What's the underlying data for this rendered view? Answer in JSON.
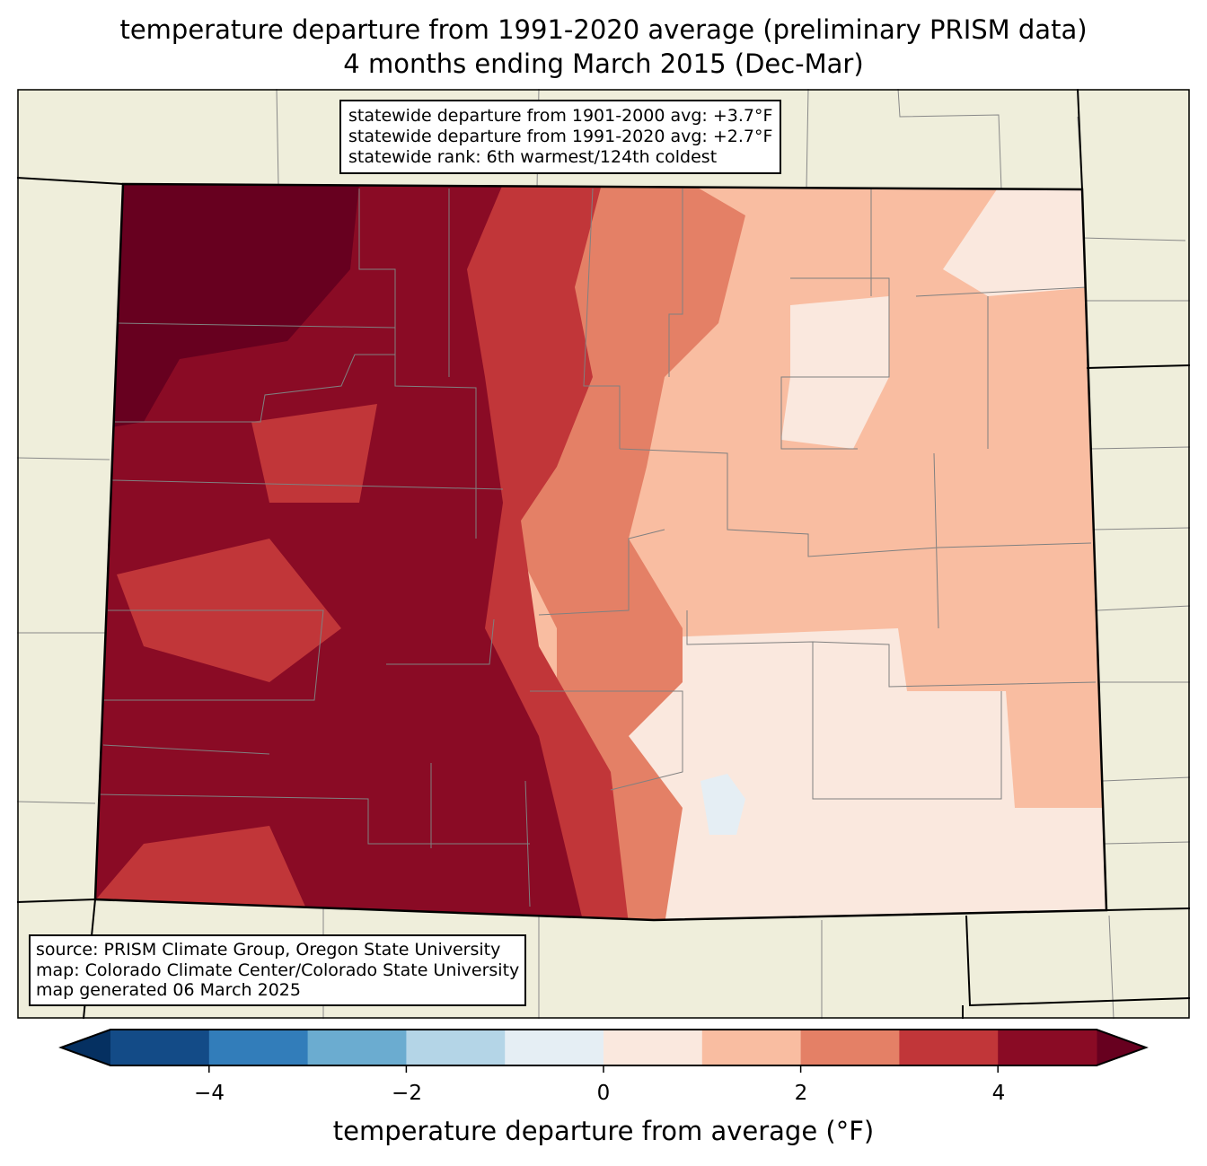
{
  "title": {
    "line1": "temperature departure from 1991-2020 average (preliminary PRISM data)",
    "line2": "4 months ending March 2015 (Dec-Mar)"
  },
  "stats_box": {
    "line1": "statewide departure from 1901-2000 avg: +3.7°F",
    "line2": "statewide departure from 1991-2020 avg: +2.7°F",
    "line3": "statewide rank: 6th warmest/124th coldest"
  },
  "source_box": {
    "line1": "source: PRISM Climate Group, Oregon State University",
    "line2": "map: Colorado Climate Center/Colorado State University",
    "line3": "map generated 06 March 2025"
  },
  "colorbar": {
    "label": "temperature departure from average (°F)",
    "levels": [
      -5,
      -4,
      -3,
      -2,
      -1,
      0,
      1,
      2,
      3,
      4,
      5
    ],
    "colors": [
      "#134b87",
      "#327dba",
      "#6bacd0",
      "#b4d5e7",
      "#e5eef4",
      "#fae8de",
      "#f9bda1",
      "#e48066",
      "#c13639",
      "#8a0b25"
    ],
    "under_color": "#053061",
    "over_color": "#67001f",
    "ticks": [
      "−4",
      "−2",
      "0",
      "2",
      "4"
    ]
  },
  "map": {
    "land_color": "#efeedb"
  }
}
